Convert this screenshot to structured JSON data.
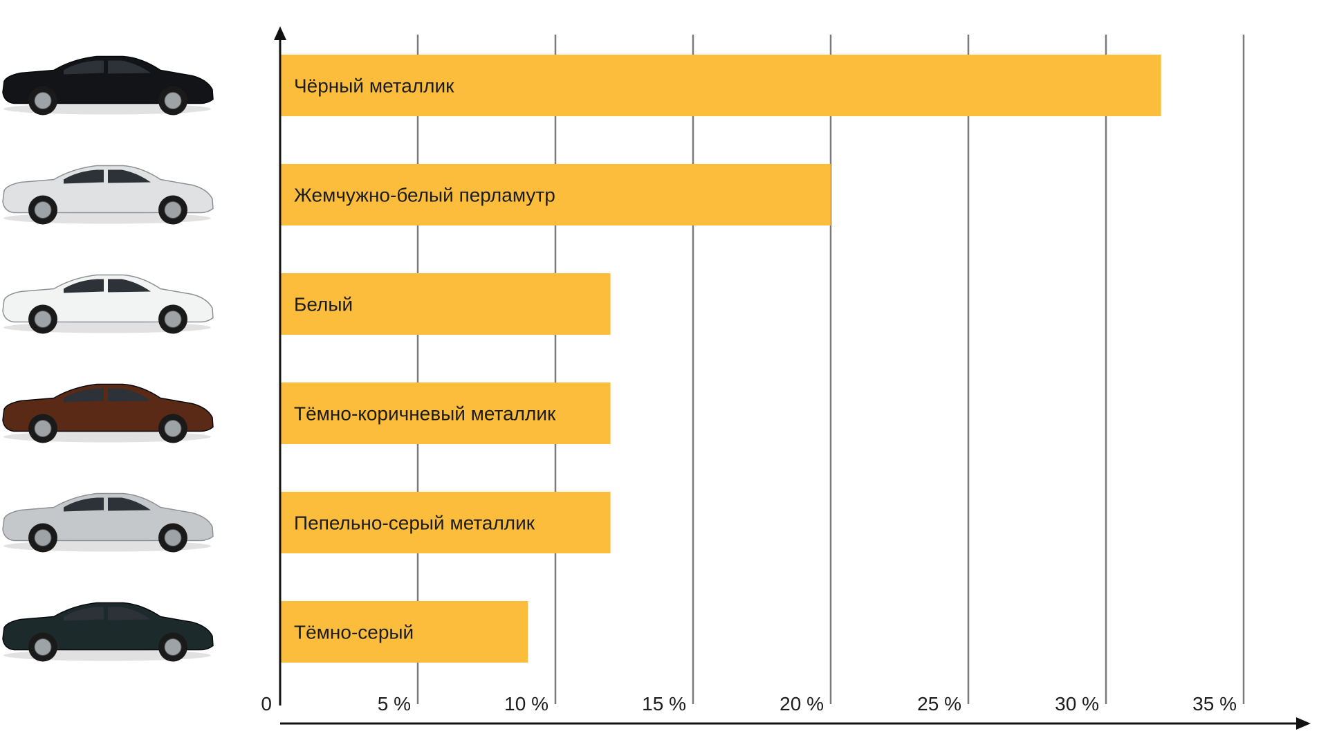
{
  "chart_data": {
    "type": "bar",
    "orientation": "horizontal",
    "categories": [
      "Чёрный металлик",
      "Жемчужно-белый перламутр",
      "Белый",
      "Тёмно-коричневый металлик",
      "Пепельно-серый металлик",
      "Тёмно-серый"
    ],
    "values": [
      32,
      20,
      12,
      12,
      12,
      9
    ],
    "unit": "%",
    "xlim": [
      0,
      35
    ],
    "ticks": [
      0,
      5,
      10,
      15,
      20,
      25,
      30,
      35
    ],
    "tick_labels": [
      "0",
      "5 %",
      "10 %",
      "15 %",
      "20 %",
      "25 %",
      "30 %",
      "35 %"
    ],
    "grid": true,
    "bar_color": "#FBBD3B",
    "car_colors": [
      "#121417",
      "#dfe1e3",
      "#f2f3f3",
      "#5a2a16",
      "#c5c8cb",
      "#1d2a2c"
    ],
    "car_icons": [
      "black-sedan-icon",
      "pearl-white-sedan-icon",
      "white-sedan-icon",
      "brown-sedan-icon",
      "silver-sedan-icon",
      "dark-gray-sedan-icon"
    ]
  }
}
